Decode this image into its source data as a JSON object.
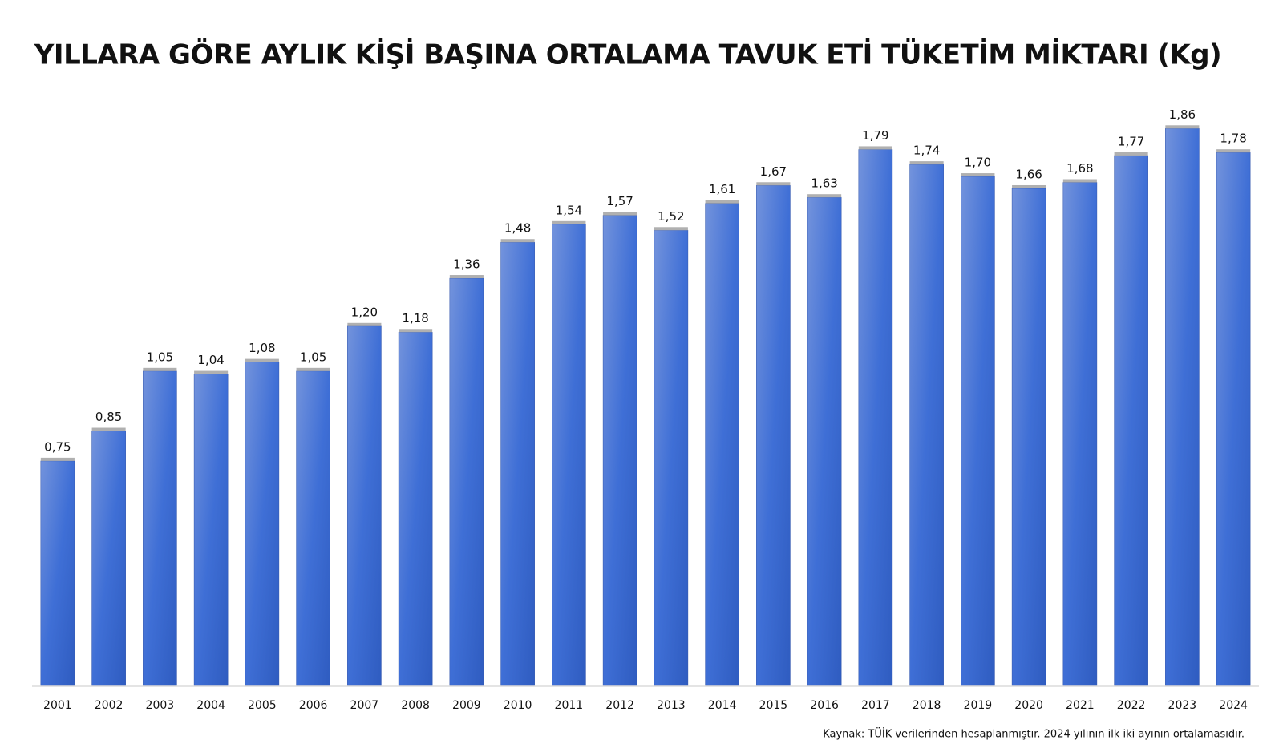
{
  "chart_data": {
    "type": "bar",
    "title": "YILLARA GÖRE AYLIK KİŞİ BAŞINA ORTALAMA TAVUK ETİ TÜKETİM MİKTARI (Kg)",
    "source": "Kaynak: TÜİK verilerinden hesaplanmıştır. 2024 yılının ilk iki ayının ortalamasıdır.",
    "categories": [
      "2001",
      "2002",
      "2003",
      "2004",
      "2005",
      "2006",
      "2007",
      "2008",
      "2009",
      "2010",
      "2011",
      "2012",
      "2013",
      "2014",
      "2015",
      "2016",
      "2017",
      "2018",
      "2019",
      "2020",
      "2021",
      "2022",
      "2023",
      "2024"
    ],
    "values": [
      0.75,
      0.85,
      1.05,
      1.04,
      1.08,
      1.05,
      1.2,
      1.18,
      1.36,
      1.48,
      1.54,
      1.57,
      1.52,
      1.61,
      1.67,
      1.63,
      1.79,
      1.74,
      1.7,
      1.66,
      1.68,
      1.77,
      1.86,
      1.78
    ],
    "value_labels": [
      "0,75",
      "0,85",
      "1,05",
      "1,04",
      "1,08",
      "1,05",
      "1,20",
      "1,18",
      "1,36",
      "1,48",
      "1,54",
      "1,57",
      "1,52",
      "1,61",
      "1,67",
      "1,63",
      "1,79",
      "1,74",
      "1,70",
      "1,66",
      "1,68",
      "1,77",
      "1,86",
      "1,78"
    ],
    "color": "#3f6fd6",
    "ylim": [
      0,
      2
    ]
  }
}
